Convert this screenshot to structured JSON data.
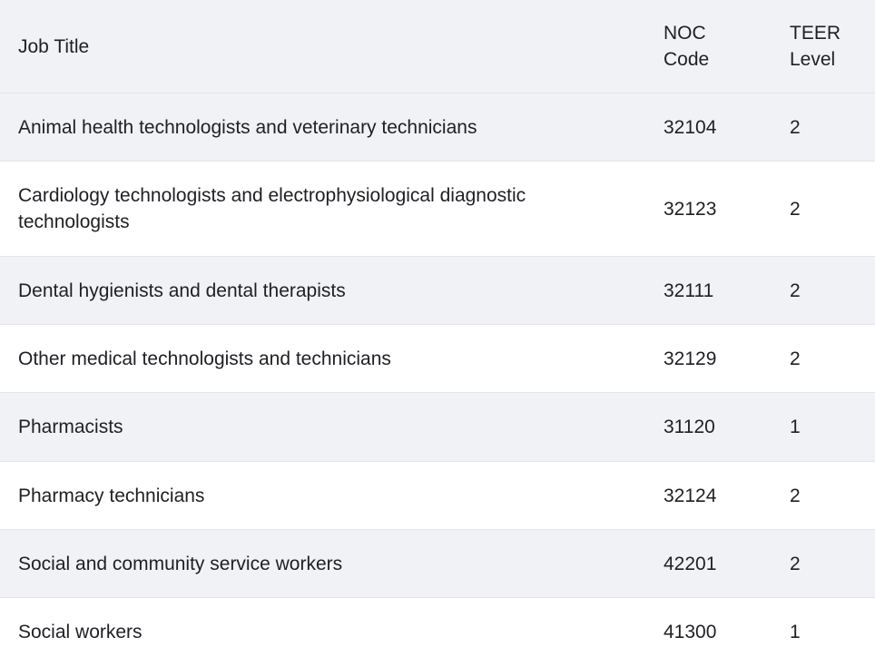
{
  "table": {
    "headers": {
      "job_title": "Job Title",
      "noc_line1": "NOC",
      "noc_line2": "Code",
      "teer_line1": "TEER",
      "teer_line2": "Level"
    },
    "rows": [
      {
        "job_title": "Animal health technologists and veterinary technicians",
        "noc_code": "32104",
        "teer_level": "2"
      },
      {
        "job_title_line1": "Cardiology technologists and electrophysiological diagnostic",
        "job_title_line2": "technologists",
        "noc_code": "32123",
        "teer_level": "2"
      },
      {
        "job_title": "Dental hygienists and dental therapists",
        "noc_code": "32111",
        "teer_level": "2"
      },
      {
        "job_title": "Other medical technologists and technicians",
        "noc_code": "32129",
        "teer_level": "2"
      },
      {
        "job_title": "Pharmacists",
        "noc_code": "31120",
        "teer_level": "1"
      },
      {
        "job_title": "Pharmacy technicians",
        "noc_code": "32124",
        "teer_level": "2"
      },
      {
        "job_title": "Social and community service workers",
        "noc_code": "42201",
        "teer_level": "2"
      },
      {
        "job_title": "Social workers",
        "noc_code": "41300",
        "teer_level": "1"
      }
    ]
  }
}
